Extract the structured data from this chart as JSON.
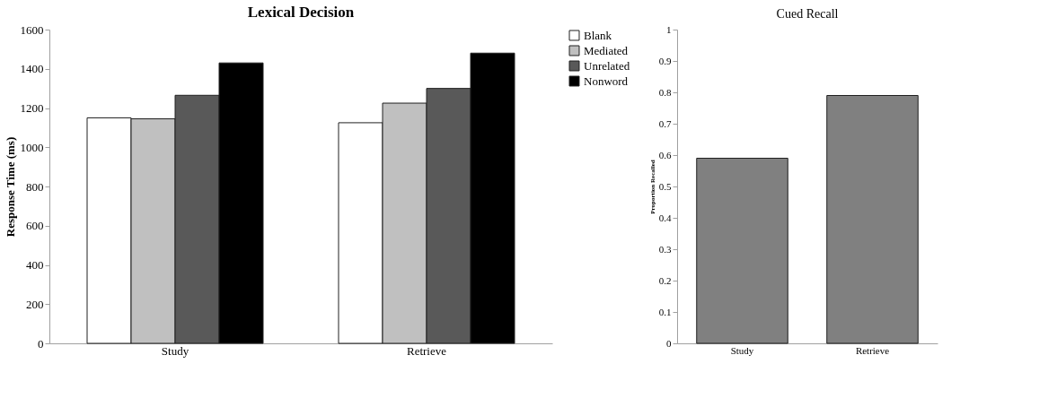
{
  "chart_data": [
    {
      "type": "bar",
      "title": "Lexical Decision",
      "ylabel": "Response Time (ms)",
      "categories": [
        "Study",
        "Retrieve"
      ],
      "series": [
        {
          "name": "Blank",
          "color": "#ffffff",
          "values": [
            1150,
            1125
          ]
        },
        {
          "name": "Mediated",
          "color": "#c0c0c0",
          "values": [
            1145,
            1225
          ]
        },
        {
          "name": "Unrelated",
          "color": "#595959",
          "values": [
            1265,
            1300
          ]
        },
        {
          "name": "Nonword",
          "color": "#000000",
          "values": [
            1430,
            1480
          ]
        }
      ],
      "ylim": [
        0,
        1600
      ],
      "yticks": [
        0,
        200,
        400,
        600,
        800,
        1000,
        1200,
        1400,
        1600
      ],
      "grid": false,
      "legend": "right"
    },
    {
      "type": "bar",
      "title": "Cued Recall",
      "ylabel": "Proportion Recalled",
      "categories": [
        "Study",
        "Retrieve"
      ],
      "values": [
        0.59,
        0.79
      ],
      "color": "#808080",
      "ylim": [
        0,
        1
      ],
      "yticks": [
        0,
        0.1,
        0.2,
        0.3,
        0.4,
        0.5,
        0.6,
        0.7,
        0.8,
        0.9,
        1
      ],
      "grid": false,
      "legend": false
    }
  ]
}
